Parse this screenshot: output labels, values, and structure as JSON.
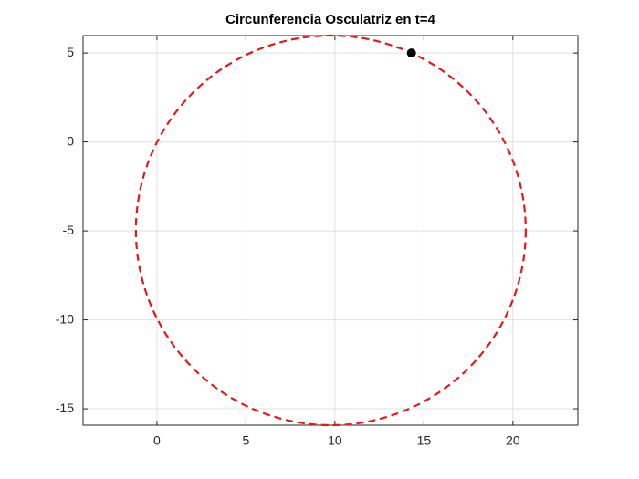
{
  "chart_data": {
    "type": "circle",
    "title": "Circunferencia Osculatriz en t=4",
    "circle": {
      "center": [
        9.77,
        -4.97
      ],
      "radius": 10.95,
      "color": "#e31a1c"
    },
    "point": {
      "x": 14.3,
      "y": 5.0,
      "color": "#000000"
    },
    "xlim": [
      -4.15,
      23.65
    ],
    "ylim": [
      -15.92,
      5.98
    ],
    "xticks": [
      0,
      5,
      10,
      15,
      20
    ],
    "yticks": [
      -15,
      -10,
      -5,
      0,
      5
    ],
    "grid": true
  }
}
